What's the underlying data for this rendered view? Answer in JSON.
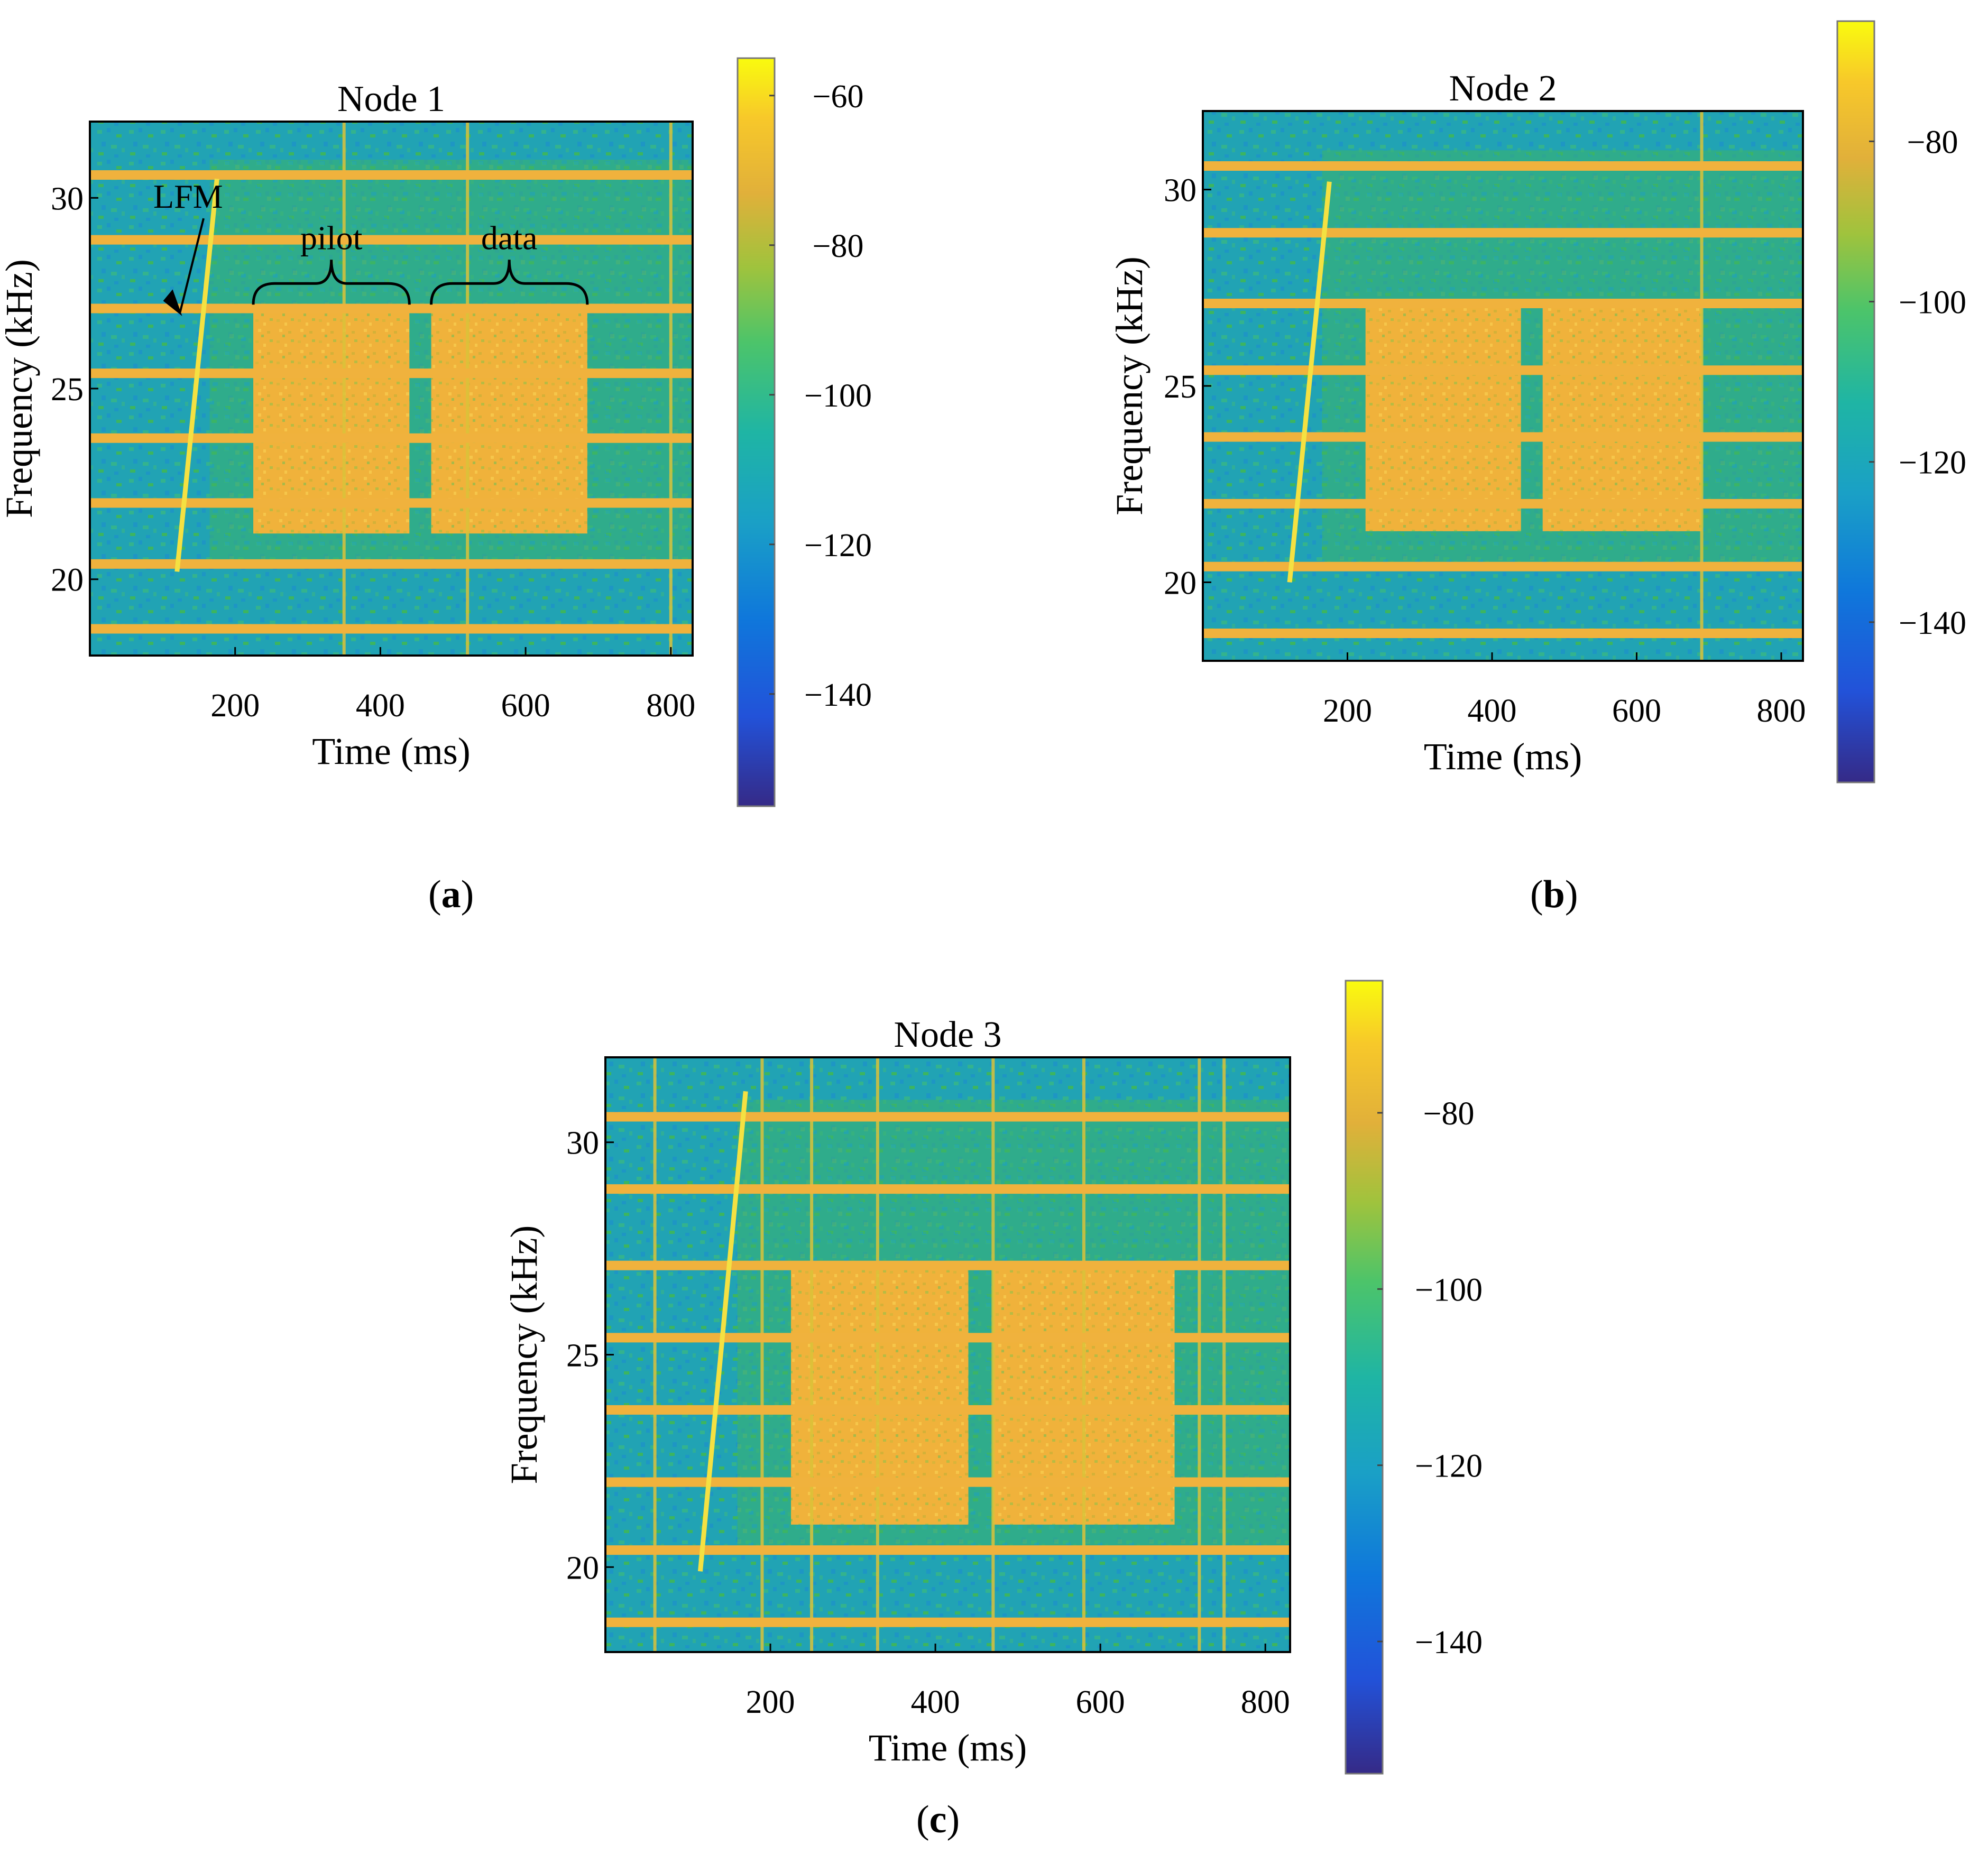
{
  "figure": {
    "panel_labels": [
      "a",
      "b",
      "c"
    ]
  },
  "colors": {
    "background": "#1fa9a0",
    "noise_a": "#21a3b4",
    "noise_b": "#3cb560",
    "tone": "#f3b23a",
    "block": "#f2b43b",
    "chirp": "#f4e142",
    "axis": "#000000"
  },
  "chart_data": [
    {
      "id": "node1",
      "type": "heatmap",
      "title": "Node 1",
      "xlabel": "Time (ms)",
      "ylabel": "Frequency (kHz)",
      "xlim": [
        0,
        830
      ],
      "ylim": [
        18,
        32
      ],
      "xticks": [
        200,
        400,
        600,
        800
      ],
      "yticks": [
        20,
        25,
        30
      ],
      "tones_khz": [
        18.7,
        20.4,
        22.0,
        23.7,
        25.4,
        27.1,
        28.9,
        30.6
      ],
      "lfm": {
        "t_start": 120,
        "t_end": 175,
        "f_start": 20.2,
        "f_end": 30.5
      },
      "blocks": [
        {
          "name": "pilot",
          "t_start": 225,
          "t_end": 440,
          "f_low": 21.2,
          "f_high": 27.1
        },
        {
          "name": "data",
          "t_start": 470,
          "t_end": 685,
          "f_low": 21.2,
          "f_high": 27.1
        }
      ],
      "pulses_ms": [
        350,
        520,
        800
      ],
      "annotations": [
        "LFM",
        "pilot",
        "data"
      ],
      "colorbar": {
        "ticks": [
          -60,
          -80,
          -100,
          -120,
          -140
        ],
        "range": [
          -155,
          -55
        ]
      }
    },
    {
      "id": "node2",
      "type": "heatmap",
      "title": "Node 2",
      "xlabel": "Time (ms)",
      "ylabel": "Frequency (kHz)",
      "xlim": [
        0,
        830
      ],
      "ylim": [
        18,
        32
      ],
      "xticks": [
        200,
        400,
        600,
        800
      ],
      "yticks": [
        20,
        25,
        30
      ],
      "tones_khz": [
        18.7,
        20.4,
        22.0,
        23.7,
        25.4,
        27.1,
        28.9,
        30.6
      ],
      "lfm": {
        "t_start": 120,
        "t_end": 175,
        "f_start": 20.0,
        "f_end": 30.2
      },
      "blocks": [
        {
          "name": "pilot",
          "t_start": 225,
          "t_end": 440,
          "f_low": 21.3,
          "f_high": 27.2
        },
        {
          "name": "data",
          "t_start": 470,
          "t_end": 690,
          "f_low": 21.3,
          "f_high": 27.2
        }
      ],
      "pulses_ms": [
        690
      ],
      "annotations": [],
      "colorbar": {
        "ticks": [
          -80,
          -100,
          -120,
          -140
        ],
        "range": [
          -160,
          -65
        ]
      }
    },
    {
      "id": "node3",
      "type": "heatmap",
      "title": "Node 3",
      "xlabel": "Time (ms)",
      "ylabel": "Frequency (kHz)",
      "xlim": [
        0,
        830
      ],
      "ylim": [
        18,
        32
      ],
      "xticks": [
        200,
        400,
        600,
        800
      ],
      "yticks": [
        20,
        25,
        30
      ],
      "tones_khz": [
        18.7,
        20.4,
        22.0,
        23.7,
        25.4,
        27.1,
        28.9,
        30.6
      ],
      "lfm": {
        "t_start": 115,
        "t_end": 170,
        "f_start": 19.9,
        "f_end": 31.2
      },
      "blocks": [
        {
          "name": "pilot",
          "t_start": 225,
          "t_end": 440,
          "f_low": 21.0,
          "f_high": 27.1
        },
        {
          "name": "data",
          "t_start": 470,
          "t_end": 690,
          "f_low": 21.0,
          "f_high": 27.1
        }
      ],
      "pulses_ms": [
        60,
        190,
        250,
        330,
        470,
        580,
        720,
        750
      ],
      "annotations": [],
      "colorbar": {
        "ticks": [
          -80,
          -100,
          -120,
          -140
        ],
        "range": [
          -155,
          -65
        ]
      }
    }
  ]
}
